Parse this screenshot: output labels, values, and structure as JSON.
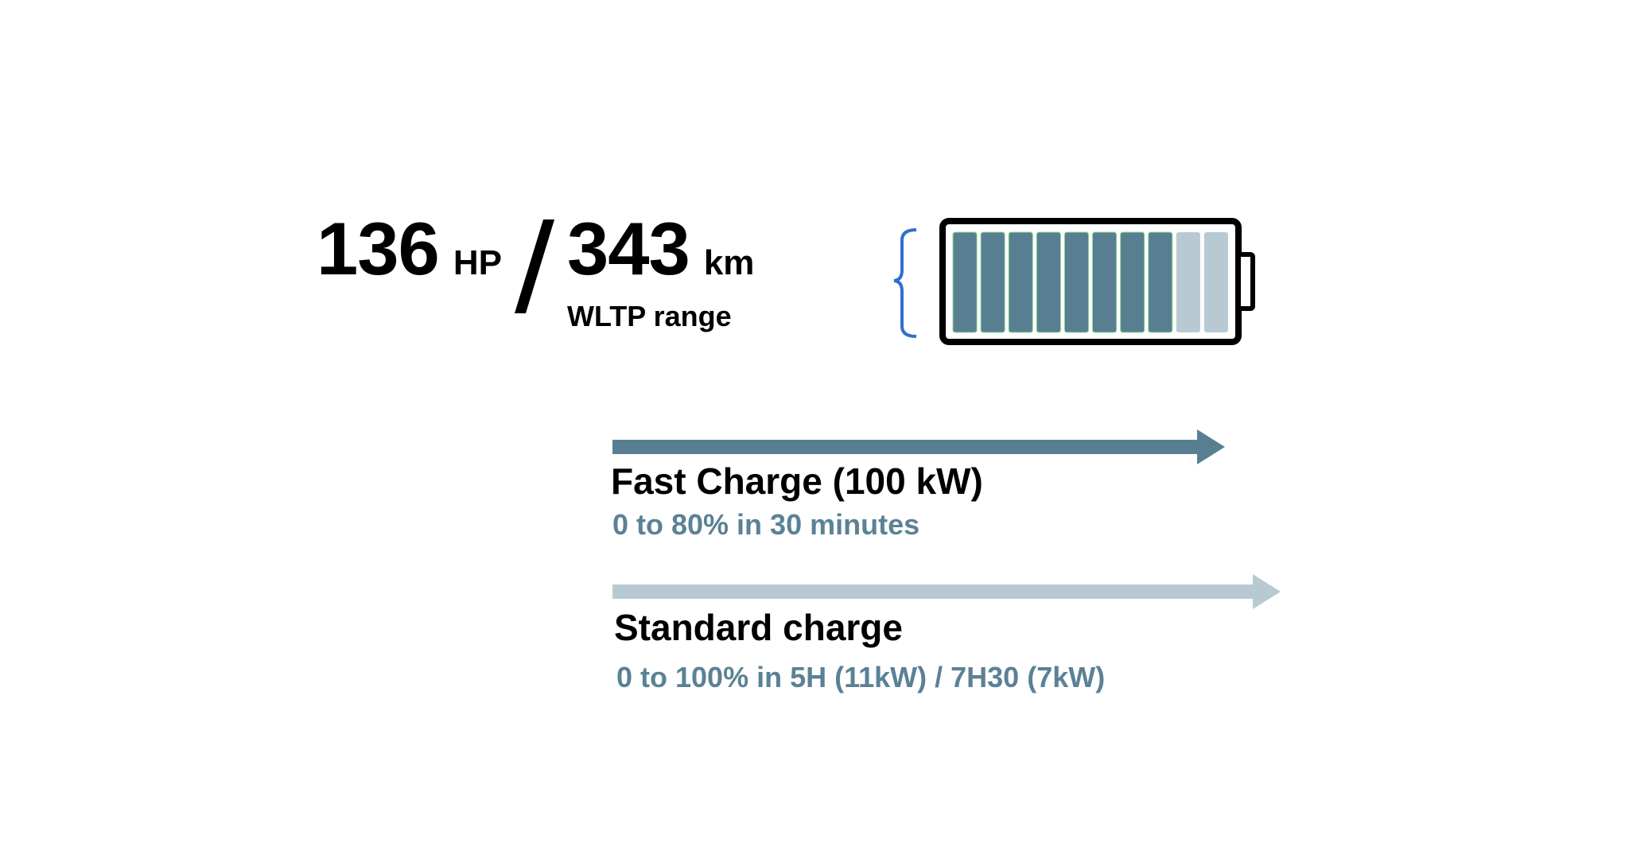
{
  "specs": {
    "power_value": "136",
    "power_unit": "HP",
    "range_value": "343",
    "range_unit": "km",
    "range_label": "WLTP range"
  },
  "battery": {
    "segments_total": 10,
    "segments_filled": 8,
    "colors": {
      "filled": "#587f91",
      "empty": "#b8c9d4",
      "outline": "#000000",
      "bracket": "#2f6fd0"
    }
  },
  "charging": [
    {
      "title": "Fast Charge (100 kW)",
      "description": "0 to 80% in 30 minutes",
      "arrow_color": "#587f91"
    },
    {
      "title": "Standard charge",
      "description": "0 to 100% in 5H (11kW) / 7H30 (7kW)",
      "arrow_color": "#b8c9d4"
    }
  ]
}
